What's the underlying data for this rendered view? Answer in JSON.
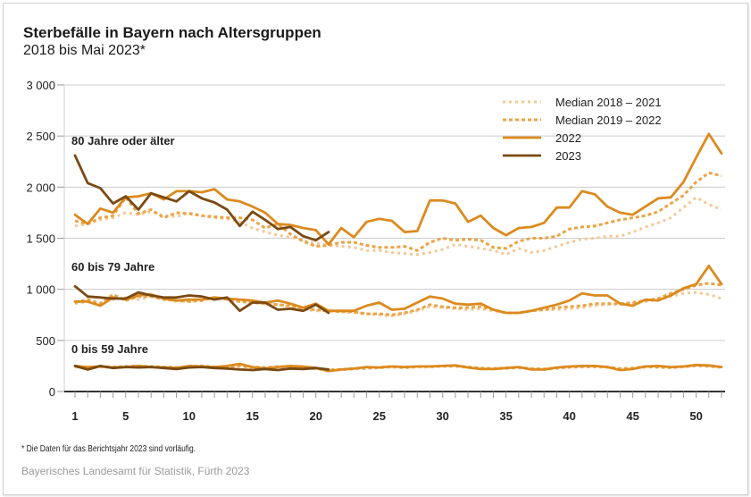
{
  "header": {
    "title": "Sterbefälle in Bayern nach Altersgruppen",
    "subtitle": "2018 bis Mai 2023*"
  },
  "footer": {
    "footnote": "*   Die Daten für das Berichtsjahr 2023 sind vorläufig.",
    "source": "Bayerisches Landesamt für Statistik, Fürth 2023"
  },
  "colors": {
    "median_2018_2021": "#f5c896",
    "median_2019_2022": "#eba447",
    "y2022": "#dc8a1e",
    "y2023": "#7a4a12",
    "grid": "#cccccc",
    "axis": "#333333"
  },
  "chart_data": {
    "type": "line",
    "title": "Sterbefälle in Bayern nach Altersgruppen",
    "subtitle": "2018 bis Mai 2023*",
    "xlabel": "",
    "ylabel": "",
    "xlim": [
      1,
      52
    ],
    "ylim": [
      0,
      3000
    ],
    "yticks": [
      0,
      500,
      1000,
      1500,
      2000,
      2500,
      3000
    ],
    "ytick_labels": [
      "0",
      "500",
      "1 000",
      "1 500",
      "2 000",
      "2 500",
      "3 000"
    ],
    "xticks": [
      1,
      5,
      10,
      15,
      20,
      25,
      30,
      35,
      40,
      45,
      50
    ],
    "grid": true,
    "legend_position": "top-right",
    "legend": [
      "Median 2018 – 2021",
      "Median 2019 – 2022",
      "2022",
      "2023"
    ],
    "groups": [
      {
        "label": "80 Jahre oder älter",
        "series": [
          {
            "name": "Median 2018 – 2021",
            "style": "dotted-light",
            "values": [
              1620,
              1640,
              1680,
              1700,
              1750,
              1730,
              1760,
              1720,
              1710,
              1750,
              1720,
              1700,
              1690,
              1660,
              1600,
              1560,
              1530,
              1510,
              1480,
              1450,
              1430,
              1420,
              1410,
              1380,
              1380,
              1360,
              1350,
              1340,
              1360,
              1390,
              1440,
              1420,
              1400,
              1380,
              1340,
              1400,
              1360,
              1380,
              1420,
              1460,
              1490,
              1500,
              1520,
              1520,
              1560,
              1610,
              1650,
              1700,
              1800,
              1900,
              1830,
              1780
            ]
          },
          {
            "name": "Median 2019 – 2022",
            "style": "dotted-dark",
            "values": [
              1670,
              1640,
              1700,
              1720,
              1900,
              1740,
              1780,
              1700,
              1750,
              1740,
              1720,
              1710,
              1700,
              1700,
              1680,
              1600,
              1640,
              1540,
              1470,
              1420,
              1430,
              1460,
              1460,
              1430,
              1410,
              1410,
              1420,
              1380,
              1460,
              1500,
              1480,
              1490,
              1480,
              1410,
              1400,
              1470,
              1500,
              1500,
              1520,
              1590,
              1610,
              1620,
              1650,
              1680,
              1700,
              1720,
              1760,
              1840,
              1920,
              2050,
              2140,
              2110
            ]
          },
          {
            "name": "2022",
            "style": "solid",
            "values": [
              1730,
              1640,
              1790,
              1750,
              1900,
              1910,
              1940,
              1880,
              1960,
              1960,
              1950,
              1980,
              1880,
              1860,
              1810,
              1750,
              1640,
              1630,
              1600,
              1580,
              1440,
              1600,
              1510,
              1660,
              1690,
              1670,
              1560,
              1570,
              1870,
              1870,
              1840,
              1660,
              1720,
              1600,
              1530,
              1600,
              1610,
              1650,
              1800,
              1800,
              1960,
              1930,
              1810,
              1750,
              1730,
              1810,
              1890,
              1900,
              2050,
              2290,
              2520,
              2330
            ]
          },
          {
            "name": "2023",
            "style": "solid-dark",
            "values": [
              2310,
              2040,
              1990,
              1840,
              1910,
              1780,
              1940,
              1900,
              1860,
              1960,
              1890,
              1850,
              1780,
              1620,
              1760,
              1680,
              1590,
              1610,
              1520,
              1480,
              1560
            ]
          }
        ]
      },
      {
        "label": "60 bis 79 Jahre",
        "series": [
          {
            "name": "Median 2018 – 2021",
            "style": "dotted-light",
            "values": [
              860,
              880,
              870,
              900,
              920,
              900,
              930,
              910,
              880,
              890,
              900,
              910,
              900,
              890,
              870,
              860,
              850,
              830,
              800,
              790,
              790,
              780,
              770,
              760,
              750,
              740,
              760,
              790,
              830,
              820,
              810,
              800,
              810,
              790,
              770,
              770,
              790,
              800,
              800,
              810,
              820,
              840,
              850,
              850,
              860,
              880,
              900,
              930,
              960,
              970,
              950,
              910
            ]
          },
          {
            "name": "Median 2019 – 2022",
            "style": "dotted-dark",
            "values": [
              870,
              900,
              860,
              950,
              890,
              930,
              930,
              900,
              890,
              880,
              890,
              920,
              900,
              880,
              870,
              860,
              850,
              840,
              810,
              800,
              790,
              780,
              780,
              760,
              760,
              750,
              770,
              800,
              850,
              830,
              820,
              820,
              830,
              800,
              770,
              770,
              790,
              800,
              820,
              830,
              840,
              860,
              860,
              860,
              870,
              890,
              910,
              960,
              1000,
              1040,
              1060,
              1040
            ]
          },
          {
            "name": "2022",
            "style": "solid",
            "values": [
              880,
              880,
              840,
              920,
              900,
              940,
              950,
              910,
              890,
              900,
              900,
              920,
              910,
              900,
              890,
              870,
              890,
              860,
              820,
              860,
              790,
              790,
              790,
              840,
              870,
              800,
              810,
              870,
              930,
              910,
              860,
              850,
              860,
              800,
              770,
              770,
              790,
              820,
              850,
              890,
              960,
              940,
              940,
              860,
              840,
              900,
              890,
              940,
              1010,
              1050,
              1230,
              1050
            ]
          },
          {
            "name": "2023",
            "style": "solid-dark",
            "values": [
              1030,
              930,
              920,
              910,
              910,
              970,
              940,
              920,
              920,
              940,
              930,
              900,
              920,
              790,
              870,
              870,
              800,
              810,
              790,
              850,
              770
            ]
          }
        ]
      },
      {
        "label": "0 bis 59 Jahre",
        "series": [
          {
            "name": "Median 2018 – 2021",
            "style": "dotted-light",
            "values": [
              240,
              230,
              240,
              235,
              240,
              245,
              240,
              235,
              230,
              240,
              245,
              235,
              240,
              245,
              235,
              230,
              240,
              235,
              230,
              220,
              210,
              210,
              220,
              225,
              230,
              240,
              230,
              240,
              240,
              245,
              245,
              235,
              225,
              220,
              225,
              230,
              220,
              215,
              225,
              235,
              240,
              240,
              235,
              220,
              225,
              240,
              235,
              230,
              240,
              250,
              245,
              235
            ]
          },
          {
            "name": "Median 2019 – 2022",
            "style": "dotted-dark",
            "values": [
              245,
              235,
              245,
              240,
              245,
              250,
              245,
              240,
              235,
              245,
              250,
              240,
              245,
              250,
              240,
              235,
              245,
              240,
              235,
              225,
              215,
              215,
              225,
              230,
              235,
              245,
              235,
              245,
              245,
              250,
              250,
              240,
              230,
              225,
              230,
              235,
              225,
              220,
              230,
              240,
              245,
              245,
              240,
              225,
              230,
              245,
              240,
              235,
              245,
              255,
              250,
              240
            ]
          },
          {
            "name": "2022",
            "style": "solid",
            "values": [
              250,
              240,
              245,
              235,
              240,
              250,
              240,
              235,
              230,
              250,
              245,
              240,
              250,
              270,
              240,
              225,
              240,
              250,
              245,
              230,
              200,
              215,
              225,
              240,
              235,
              245,
              240,
              245,
              245,
              250,
              255,
              235,
              220,
              220,
              230,
              240,
              215,
              215,
              235,
              245,
              250,
              250,
              240,
              210,
              220,
              245,
              250,
              240,
              245,
              260,
              255,
              240
            ]
          },
          {
            "name": "2023",
            "style": "solid-dark",
            "values": [
              250,
              215,
              250,
              230,
              240,
              235,
              240,
              230,
              220,
              235,
              240,
              230,
              225,
              215,
              210,
              220,
              210,
              225,
              220,
              230,
              215
            ]
          }
        ]
      }
    ]
  }
}
